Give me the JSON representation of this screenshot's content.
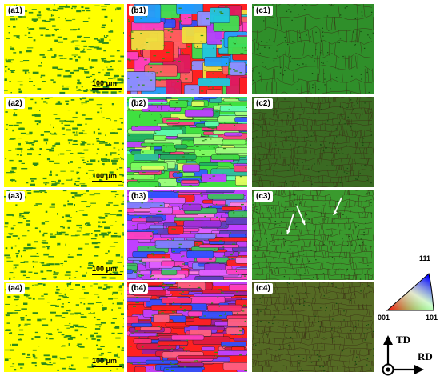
{
  "panels": [
    {
      "label": "(a1)",
      "kind": "a",
      "scale": "100 μm"
    },
    {
      "label": "(b1)",
      "kind": "b1"
    },
    {
      "label": "(c1)",
      "kind": "c1"
    },
    {
      "label": "(a2)",
      "kind": "a",
      "scale": "100 μm"
    },
    {
      "label": "(b2)",
      "kind": "b2"
    },
    {
      "label": "(c2)",
      "kind": "c2"
    },
    {
      "label": "(a3)",
      "kind": "a",
      "scale": "100 μm"
    },
    {
      "label": "(b3)",
      "kind": "b3"
    },
    {
      "label": "(c3)",
      "kind": "c3"
    },
    {
      "label": "(a4)",
      "kind": "a",
      "scale": "100 μm"
    },
    {
      "label": "(b4)",
      "kind": "b4"
    },
    {
      "label": "(c4)",
      "kind": "c4"
    }
  ],
  "ipf_key": {
    "top": "111",
    "left": "001",
    "right": "101"
  },
  "axes": {
    "vertical": "TD",
    "horizontal": "RD"
  },
  "colors": {
    "phase_bg": "#ffff00",
    "phase_dots": "#2e8b1a",
    "kam_bg": "#2f8f2a"
  }
}
